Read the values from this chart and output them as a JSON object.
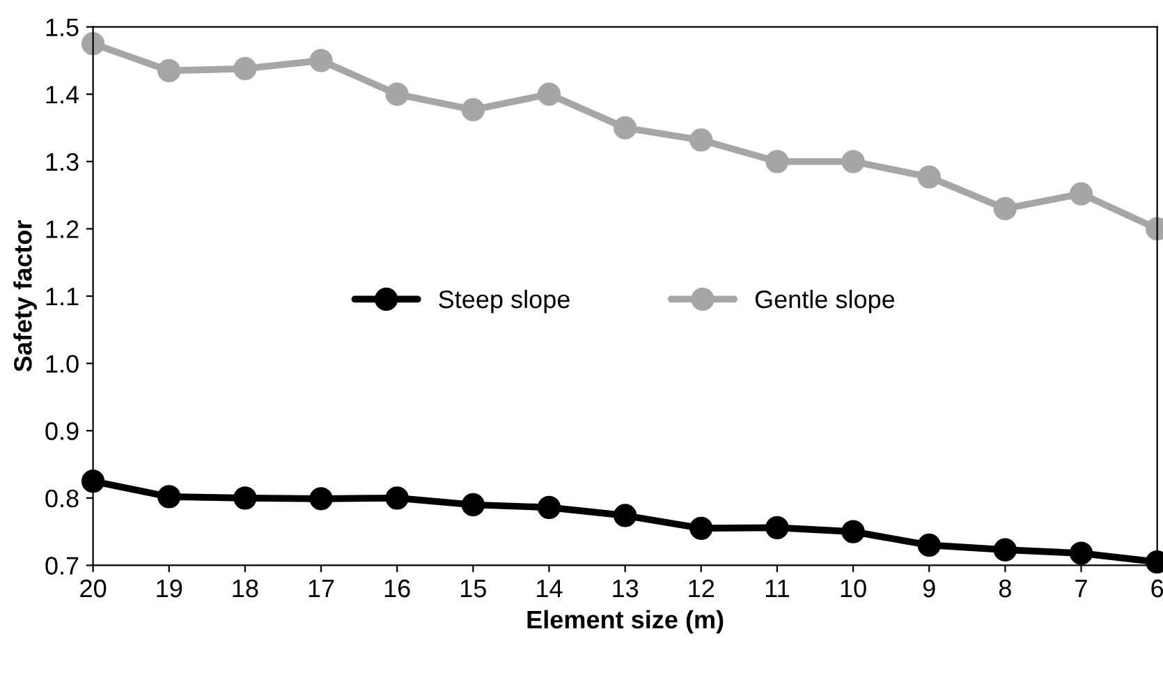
{
  "chart_data": {
    "type": "line",
    "xlabel": "Element size (m)",
    "ylabel": "Safety factor",
    "x": [
      20,
      19,
      18,
      17,
      16,
      15,
      14,
      13,
      12,
      11,
      10,
      9,
      8,
      7,
      6
    ],
    "xlim": [
      20,
      6
    ],
    "xticks": [
      20,
      19,
      18,
      17,
      16,
      15,
      14,
      13,
      12,
      11,
      10,
      9,
      8,
      7,
      6
    ],
    "ylim": [
      0.7,
      1.5
    ],
    "yticks": [
      {
        "value": 0.7,
        "label": "0.7"
      },
      {
        "value": 0.8,
        "label": "0.8"
      },
      {
        "value": 0.9,
        "label": "0.9"
      },
      {
        "value": 1.0,
        "label": "1.0"
      },
      {
        "value": 1.1,
        "label": "1.1"
      },
      {
        "value": 1.2,
        "label": "1.2"
      },
      {
        "value": 1.3,
        "label": "1.3"
      },
      {
        "value": 1.4,
        "label": "1.4"
      },
      {
        "value": 1.5,
        "label": "1.5"
      }
    ],
    "series": [
      {
        "name": "Steep slope",
        "color": "#000000",
        "values": [
          0.825,
          0.802,
          0.8,
          0.799,
          0.8,
          0.79,
          0.786,
          0.774,
          0.755,
          0.756,
          0.75,
          0.73,
          0.723,
          0.718,
          0.705
        ]
      },
      {
        "name": "Gentle slope",
        "color": "#a6a6a6",
        "values": [
          1.475,
          1.435,
          1.438,
          1.45,
          1.4,
          1.377,
          1.4,
          1.35,
          1.332,
          1.3,
          1.3,
          1.277,
          1.23,
          1.252,
          1.2
        ]
      }
    ],
    "marker": "circle",
    "line_style": "solid",
    "grid": false,
    "legend": "center"
  }
}
